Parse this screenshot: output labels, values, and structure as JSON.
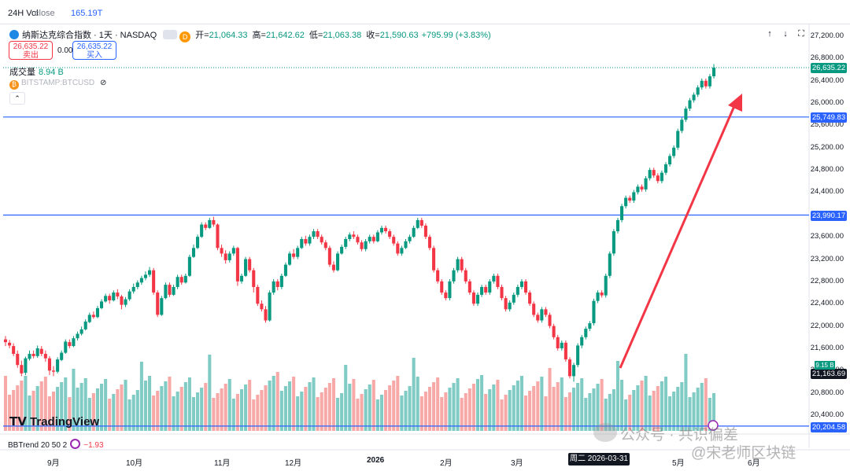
{
  "header": {
    "vol_label": "24H Vol",
    "close_label": "close",
    "vol_value": "165.19T"
  },
  "legend": {
    "title": "纳斯达克综合指数 · 1天 · NASDAQ",
    "d_badge": "D",
    "open_label": "开=",
    "open_value": "21,064.33",
    "high_label": "高=",
    "high_value": "21,642.62",
    "low_label": "低=",
    "low_value": "21,063.38",
    "close_label": "收=",
    "close_value": "21,590.63",
    "change": "+795.99 (+3.83%)"
  },
  "quote": {
    "sell_price": "26,635.22",
    "sell_label": "卖出",
    "spread": "0.00",
    "buy_price": "26,635.22",
    "buy_label": "买入"
  },
  "volume_row": {
    "label": "成交量",
    "value": "8.94 B"
  },
  "overlay_symbol": "BITSTAMP:BTCUSD",
  "collapse_glyph": "⌃",
  "toolbar": {
    "up": "↑",
    "down": "↓",
    "expand": "⛶"
  },
  "y_axis": {
    "ticks": [
      "27,200.00",
      "26,800.00",
      "26,400.00",
      "26,000.00",
      "25,600.00",
      "25,200.00",
      "24,800.00",
      "24,400.00",
      "24,000.00",
      "23,600.00",
      "23,200.00",
      "22,800.00",
      "22,400.00",
      "22,000.00",
      "21,600.00",
      "21,200.00",
      "20,800.00",
      "20,400.00"
    ]
  },
  "price_tags": {
    "last": "26,635.22",
    "line_upper": "25,749.83",
    "line_mid": "23,990.17",
    "line_lower": "20,204.58",
    "cursor": "21,163.69",
    "vol_badge": "9.15 B"
  },
  "x_axis": {
    "labels": [
      "9月",
      "10月",
      "11月",
      "12月",
      "2026",
      "2月",
      "3月",
      "5月",
      "6月"
    ],
    "cursor_date": "周二 2026-03-31"
  },
  "indicator": {
    "name": "BBTrend 20 50 2",
    "value": "−1.93"
  },
  "brand": "TradingView",
  "watermark": {
    "left": "公众号 · 共识偏差",
    "right": "@宋老师区块链"
  },
  "colors": {
    "up": "#089981",
    "down": "#f23645",
    "hline": "#2962ff",
    "arrow": "#f23645",
    "vol_up": "#80cbc4",
    "vol_down": "#f7a9a8"
  },
  "chart_data": {
    "type": "candlestick",
    "title": "纳斯达克综合指数 · 1天 · NASDAQ",
    "ylim": [
      20000,
      27400
    ],
    "horizontal_lines": [
      25749.83,
      23990.17,
      20204.58
    ],
    "last_price": 26635.22,
    "annotation": "arrow",
    "x_labels": [
      "9月",
      "10月",
      "11月",
      "12月",
      "2026",
      "2月",
      "3月",
      "5月",
      "6月"
    ],
    "candles": [
      [
        21760,
        21710,
        21820,
        21640
      ],
      [
        21700,
        21650,
        21750,
        21600
      ],
      [
        21640,
        21500,
        21690,
        21460
      ],
      [
        21500,
        21300,
        21560,
        21250
      ],
      [
        21300,
        21150,
        21380,
        21100
      ],
      [
        21160,
        21420,
        21450,
        21120
      ],
      [
        21410,
        21500,
        21560,
        21380
      ],
      [
        21500,
        21460,
        21560,
        21420
      ],
      [
        21460,
        21600,
        21650,
        21430
      ],
      [
        21590,
        21500,
        21640,
        21460
      ],
      [
        21500,
        21420,
        21560,
        21360
      ],
      [
        21420,
        21200,
        21460,
        21120
      ],
      [
        21200,
        21180,
        21280,
        21100
      ],
      [
        21180,
        21400,
        21440,
        21150
      ],
      [
        21390,
        21520,
        21560,
        21370
      ],
      [
        21520,
        21720,
        21760,
        21500
      ],
      [
        21710,
        21640,
        21760,
        21600
      ],
      [
        21640,
        21780,
        21820,
        21620
      ],
      [
        21780,
        21860,
        21900,
        21740
      ],
      [
        21860,
        21940,
        21990,
        21830
      ],
      [
        21940,
        22080,
        22120,
        21920
      ],
      [
        22070,
        22200,
        22240,
        22050
      ],
      [
        22200,
        22160,
        22260,
        22130
      ],
      [
        22160,
        22320,
        22360,
        22140
      ],
      [
        22320,
        22440,
        22480,
        22300
      ],
      [
        22440,
        22540,
        22580,
        22420
      ],
      [
        22540,
        22460,
        22580,
        22400
      ],
      [
        22460,
        22600,
        22640,
        22440
      ],
      [
        22600,
        22530,
        22660,
        22480
      ],
      [
        22530,
        22380,
        22560,
        22300
      ],
      [
        22380,
        22480,
        22520,
        22340
      ],
      [
        22480,
        22620,
        22660,
        22450
      ],
      [
        22620,
        22700,
        22760,
        22580
      ],
      [
        22700,
        22780,
        22820,
        22660
      ],
      [
        22780,
        22860,
        22900,
        22740
      ],
      [
        22860,
        22920,
        22980,
        22820
      ],
      [
        22920,
        23000,
        23060,
        22880
      ],
      [
        23000,
        22600,
        23040,
        22560
      ],
      [
        22600,
        22200,
        22640,
        22160
      ],
      [
        22200,
        22500,
        22540,
        22180
      ],
      [
        22500,
        22740,
        22780,
        22480
      ],
      [
        22740,
        22560,
        22780,
        22520
      ],
      [
        22560,
        22700,
        22740,
        22540
      ],
      [
        22700,
        22880,
        22920,
        22660
      ],
      [
        22880,
        22780,
        22920,
        22740
      ],
      [
        22780,
        22900,
        22940,
        22760
      ],
      [
        22900,
        23240,
        23280,
        22880
      ],
      [
        23240,
        23400,
        23460,
        23220
      ],
      [
        23400,
        23600,
        23640,
        23380
      ],
      [
        23600,
        23820,
        23860,
        23580
      ],
      [
        23820,
        23760,
        23860,
        23720
      ],
      [
        23760,
        23900,
        23940,
        23740
      ],
      [
        23900,
        23820,
        23960,
        23780
      ],
      [
        23820,
        23400,
        23840,
        23360
      ],
      [
        23400,
        23300,
        23460,
        23240
      ],
      [
        23300,
        23180,
        23360,
        23120
      ],
      [
        23180,
        23300,
        23340,
        23140
      ],
      [
        23300,
        23400,
        23440,
        23260
      ],
      [
        23400,
        22800,
        23420,
        22720
      ],
      [
        22800,
        22900,
        22940,
        22760
      ],
      [
        22900,
        23200,
        23240,
        22880
      ],
      [
        23200,
        23000,
        23240,
        22960
      ],
      [
        23000,
        22700,
        23040,
        22600
      ],
      [
        22700,
        22400,
        22740,
        22360
      ],
      [
        22400,
        22300,
        22460,
        22260
      ],
      [
        22300,
        22100,
        22360,
        22060
      ],
      [
        22100,
        22600,
        22640,
        22080
      ],
      [
        22600,
        22800,
        22840,
        22560
      ],
      [
        22800,
        22700,
        22840,
        22640
      ],
      [
        22700,
        22900,
        22940,
        22660
      ],
      [
        22900,
        23100,
        23140,
        22880
      ],
      [
        23100,
        23300,
        23340,
        23080
      ],
      [
        23300,
        23240,
        23380,
        23200
      ],
      [
        23240,
        23400,
        23440,
        23200
      ],
      [
        23400,
        23560,
        23600,
        23380
      ],
      [
        23560,
        23480,
        23620,
        23440
      ],
      [
        23480,
        23600,
        23640,
        23440
      ],
      [
        23600,
        23700,
        23740,
        23560
      ],
      [
        23700,
        23600,
        23740,
        23560
      ],
      [
        23600,
        23500,
        23640,
        23460
      ],
      [
        23500,
        23400,
        23540,
        23360
      ],
      [
        23400,
        23100,
        23440,
        23060
      ],
      [
        23100,
        23000,
        23160,
        22960
      ],
      [
        23000,
        23300,
        23340,
        22980
      ],
      [
        23300,
        23420,
        23460,
        23280
      ],
      [
        23420,
        23560,
        23600,
        23380
      ],
      [
        23560,
        23640,
        23680,
        23520
      ],
      [
        23640,
        23600,
        23700,
        23560
      ],
      [
        23600,
        23500,
        23640,
        23460
      ],
      [
        23500,
        23380,
        23540,
        23340
      ],
      [
        23380,
        23520,
        23560,
        23340
      ],
      [
        23520,
        23600,
        23640,
        23480
      ],
      [
        23600,
        23520,
        23640,
        23480
      ],
      [
        23520,
        23680,
        23720,
        23500
      ],
      [
        23680,
        23760,
        23800,
        23640
      ],
      [
        23760,
        23700,
        23800,
        23660
      ],
      [
        23700,
        23600,
        23740,
        23560
      ],
      [
        23600,
        23480,
        23640,
        23440
      ],
      [
        23480,
        23300,
        23520,
        23260
      ],
      [
        23300,
        23400,
        23440,
        23260
      ],
      [
        23400,
        23520,
        23560,
        23380
      ],
      [
        23520,
        23600,
        23640,
        23480
      ],
      [
        23600,
        23760,
        23800,
        23580
      ],
      [
        23760,
        23900,
        23940,
        23740
      ],
      [
        23900,
        23800,
        23940,
        23760
      ],
      [
        23800,
        23600,
        23840,
        23560
      ],
      [
        23600,
        23400,
        23640,
        23360
      ],
      [
        23400,
        23000,
        23440,
        22960
      ],
      [
        23000,
        22800,
        23040,
        22760
      ],
      [
        22800,
        22600,
        22840,
        22560
      ],
      [
        22600,
        22500,
        22640,
        22460
      ],
      [
        22500,
        22800,
        22840,
        22460
      ],
      [
        22800,
        23000,
        23040,
        22760
      ],
      [
        23000,
        23200,
        23240,
        22960
      ],
      [
        23200,
        23000,
        23240,
        22960
      ],
      [
        23000,
        22800,
        23040,
        22760
      ],
      [
        22800,
        22600,
        22840,
        22560
      ],
      [
        22600,
        22400,
        22640,
        22360
      ],
      [
        22400,
        22560,
        22600,
        22360
      ],
      [
        22560,
        22700,
        22740,
        22520
      ],
      [
        22700,
        22600,
        22740,
        22560
      ],
      [
        22600,
        22800,
        22840,
        22560
      ],
      [
        22800,
        22900,
        22940,
        22760
      ],
      [
        22900,
        22700,
        22940,
        22660
      ],
      [
        22700,
        22500,
        22740,
        22460
      ],
      [
        22500,
        22300,
        22540,
        22260
      ],
      [
        22300,
        22420,
        22460,
        22260
      ],
      [
        22420,
        22560,
        22600,
        22380
      ],
      [
        22560,
        22700,
        22740,
        22520
      ],
      [
        22700,
        22800,
        22840,
        22660
      ],
      [
        22800,
        22600,
        22840,
        22560
      ],
      [
        22600,
        22400,
        22640,
        22360
      ],
      [
        22400,
        22200,
        22440,
        22160
      ],
      [
        22200,
        22100,
        22240,
        22060
      ],
      [
        22100,
        22300,
        22340,
        22060
      ],
      [
        22300,
        22200,
        22340,
        22160
      ],
      [
        22200,
        22000,
        22240,
        21960
      ],
      [
        22000,
        21800,
        22040,
        21760
      ],
      [
        21800,
        21600,
        21840,
        21560
      ],
      [
        21600,
        21700,
        21740,
        21560
      ],
      [
        21700,
        21400,
        21740,
        21360
      ],
      [
        21400,
        21100,
        21440,
        21060
      ],
      [
        21100,
        21300,
        21340,
        21000
      ],
      [
        21300,
        21650,
        21690,
        21260
      ],
      [
        21650,
        21800,
        21840,
        21600
      ],
      [
        21800,
        21950,
        21990,
        21760
      ],
      [
        21950,
        22050,
        22090,
        21910
      ],
      [
        22050,
        22450,
        22490,
        22010
      ],
      [
        22450,
        22600,
        22640,
        22410
      ],
      [
        22600,
        22550,
        22640,
        22510
      ],
      [
        22550,
        22900,
        22940,
        22510
      ],
      [
        22900,
        23300,
        23340,
        22860
      ],
      [
        23300,
        23700,
        23740,
        23260
      ],
      [
        23700,
        23900,
        23940,
        23660
      ],
      [
        23900,
        24150,
        24190,
        23860
      ],
      [
        24150,
        24300,
        24340,
        24110
      ],
      [
        24300,
        24250,
        24340,
        24210
      ],
      [
        24250,
        24400,
        24440,
        24210
      ],
      [
        24400,
        24500,
        24540,
        24360
      ],
      [
        24500,
        24450,
        24540,
        24410
      ],
      [
        24450,
        24650,
        24690,
        24410
      ],
      [
        24650,
        24800,
        24840,
        24610
      ],
      [
        24800,
        24700,
        24840,
        24660
      ],
      [
        24700,
        24600,
        24740,
        24560
      ],
      [
        24600,
        24750,
        24790,
        24560
      ],
      [
        24750,
        24900,
        24940,
        24710
      ],
      [
        24900,
        25050,
        25090,
        24860
      ],
      [
        25050,
        25200,
        25240,
        25010
      ],
      [
        25200,
        25500,
        25540,
        25160
      ],
      [
        25500,
        25700,
        25740,
        25460
      ],
      [
        25700,
        25900,
        25940,
        25660
      ],
      [
        25900,
        26050,
        26090,
        25860
      ],
      [
        26050,
        26150,
        26190,
        26010
      ],
      [
        26150,
        26280,
        26320,
        26110
      ],
      [
        26280,
        26400,
        26440,
        26240
      ],
      [
        26400,
        26300,
        26440,
        26260
      ],
      [
        26300,
        26480,
        26520,
        26260
      ],
      [
        26480,
        26635,
        26700,
        26440
      ]
    ]
  }
}
